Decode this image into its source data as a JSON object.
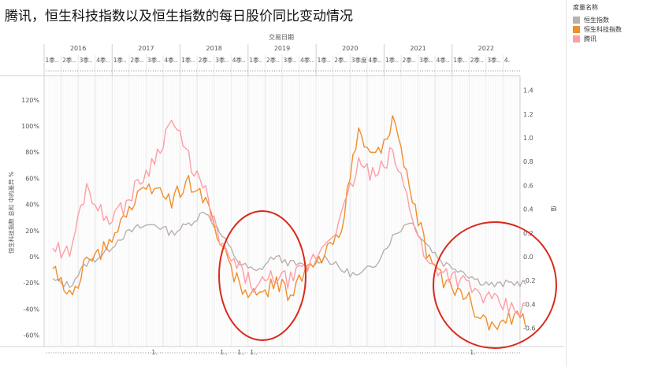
{
  "title": "腾讯，恒生科技指数以及恒生指数的每日股价同比变动情况",
  "legend": {
    "title": "度量名称",
    "items": [
      {
        "label": "恒生指数",
        "color": "#bab0ac"
      },
      {
        "label": "恒生科技指数",
        "color": "#f28e2b"
      },
      {
        "label": "腾讯",
        "color": "#ff9da7"
      }
    ]
  },
  "chart_data": {
    "type": "line",
    "xlabel": "交易日期",
    "ylabel_left": "恒生科技指数 总和 中的差异 %",
    "ylabel_right": "值",
    "years": [
      "2016",
      "2017",
      "2018",
      "2019",
      "2020",
      "2021",
      "2022"
    ],
    "quarter_labels": [
      "1季..",
      "2季..",
      "3季..",
      "4季..",
      "1季..",
      "2季..",
      "3季..",
      "4季..",
      "1季..",
      "2季..",
      "3季..",
      "4季..",
      "1季..",
      "2季..",
      "3季..",
      "4季..",
      "1季..",
      "2季..",
      "3季度",
      "4季..",
      "1季..",
      "2季..",
      "3季..",
      "4季..",
      "1季..",
      "2季..",
      "3季..",
      "4."
    ],
    "bottom_labels": [
      "1.",
      "1..",
      "1..",
      "1..",
      "1."
    ],
    "left_ticks": [
      "120%",
      "100%",
      "80%",
      "60%",
      "40%",
      "20%",
      "0%",
      "-20%",
      "-40%",
      "-60%"
    ],
    "right_ticks": [
      "1.4",
      "1.2",
      "1.0",
      "0.8",
      "0.6",
      "0.4",
      "0.2",
      "0.0",
      "-0.2",
      "-0.4",
      "-0.6"
    ],
    "ylim_left": [
      -0.6,
      1.2
    ],
    "ylim_right": [
      -0.6,
      1.4
    ],
    "x_quarters": [
      "2016Q1",
      "2016Q2",
      "2016Q3",
      "2016Q4",
      "2017Q1",
      "2017Q2",
      "2017Q3",
      "2017Q4",
      "2018Q1",
      "2018Q2",
      "2018Q3",
      "2018Q4",
      "2019Q1",
      "2019Q2",
      "2019Q3",
      "2019Q4",
      "2020Q1",
      "2020Q2",
      "2020Q3",
      "2020Q4",
      "2021Q1",
      "2021Q2",
      "2021Q3",
      "2021Q4",
      "2022Q1",
      "2022Q2",
      "2022Q3",
      "2022Q4"
    ],
    "series": [
      {
        "name": "恒生指数",
        "color": "#bab0ac",
        "values": [
          -0.18,
          -0.22,
          -0.05,
          0.02,
          0.15,
          0.22,
          0.25,
          0.18,
          0.25,
          0.35,
          0.15,
          -0.05,
          -0.12,
          0.0,
          -0.05,
          -0.08,
          0.0,
          -0.1,
          -0.15,
          -0.05,
          0.15,
          0.28,
          0.1,
          -0.05,
          -0.1,
          -0.18,
          -0.22,
          -0.2
        ]
      },
      {
        "name": "恒生科技指数",
        "color": "#f28e2b",
        "values": [
          -0.1,
          -0.3,
          -0.05,
          0.05,
          0.28,
          0.45,
          0.55,
          0.42,
          0.58,
          0.45,
          0.05,
          -0.22,
          -0.32,
          -0.2,
          -0.28,
          -0.1,
          0.0,
          0.25,
          0.95,
          0.75,
          1.05,
          0.5,
          0.05,
          -0.2,
          -0.25,
          -0.42,
          -0.55,
          -0.48
        ]
      },
      {
        "name": "腾讯",
        "color": "#ff9da7",
        "values": [
          0.08,
          0.02,
          0.55,
          0.3,
          0.35,
          0.55,
          0.75,
          1.05,
          0.75,
          0.48,
          0.05,
          -0.1,
          -0.25,
          -0.15,
          -0.18,
          -0.08,
          0.1,
          0.3,
          0.72,
          0.6,
          0.8,
          0.4,
          -0.05,
          -0.1,
          -0.18,
          -0.28,
          -0.35,
          -0.4
        ]
      }
    ]
  }
}
